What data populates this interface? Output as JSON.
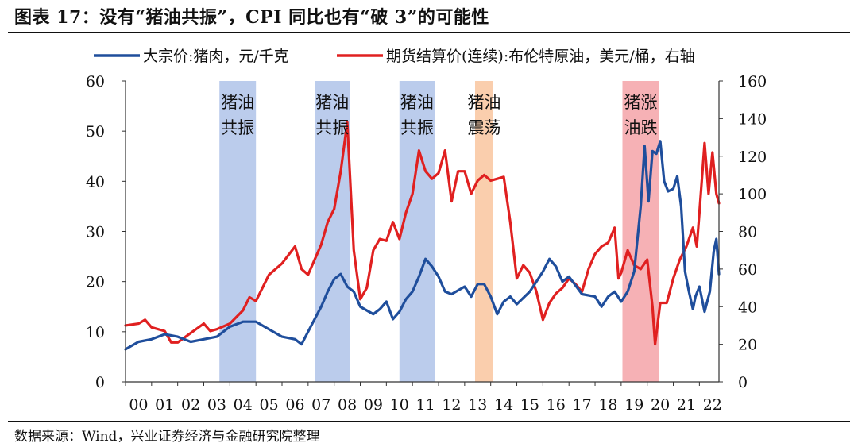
{
  "title": "图表 17：没有“猪油共振”，CPI 同比也有“破 3”的可能性",
  "source": "数据来源：Wind，兴业证券经济与金融研究院整理",
  "colors": {
    "pork": "#1f4e9c",
    "oil": "#e02020",
    "band_blue": "#b4c6ea",
    "band_orange": "#f9c9a4",
    "band_red": "#f5a3a8"
  },
  "chart_data": {
    "type": "line",
    "x_tick_labels": [
      "00",
      "01",
      "02",
      "03",
      "04",
      "05",
      "06",
      "07",
      "08",
      "09",
      "10",
      "11",
      "12",
      "13",
      "14",
      "15",
      "16",
      "17",
      "18",
      "19",
      "20",
      "21",
      "22"
    ],
    "xlim": [
      2000.0,
      2022.75
    ],
    "y_left": {
      "lim": [
        0,
        60
      ],
      "ticks": [
        0,
        10,
        20,
        30,
        40,
        50,
        60
      ]
    },
    "y_right": {
      "lim": [
        0,
        160
      ],
      "ticks": [
        0,
        20,
        40,
        60,
        80,
        100,
        120,
        140,
        160
      ]
    },
    "legend": {
      "position": "top",
      "entries": [
        "大宗价:猪肉，元/千克",
        "期货结算价(连续):布伦特原油，美元/桶，右轴"
      ]
    },
    "series": [
      {
        "name": "大宗价:猪肉，元/千克",
        "axis": "left",
        "points": [
          [
            2000.0,
            6.5
          ],
          [
            2000.5,
            8.0
          ],
          [
            2001.0,
            8.5
          ],
          [
            2001.5,
            9.5
          ],
          [
            2002.0,
            9.0
          ],
          [
            2002.5,
            8.0
          ],
          [
            2003.0,
            8.5
          ],
          [
            2003.5,
            9.0
          ],
          [
            2004.0,
            11.0
          ],
          [
            2004.5,
            12.0
          ],
          [
            2005.0,
            12.0
          ],
          [
            2005.5,
            10.5
          ],
          [
            2006.0,
            9.0
          ],
          [
            2006.5,
            8.5
          ],
          [
            2006.75,
            7.5
          ],
          [
            2007.0,
            10.0
          ],
          [
            2007.5,
            15.0
          ],
          [
            2007.75,
            18.0
          ],
          [
            2008.0,
            20.5
          ],
          [
            2008.25,
            21.5
          ],
          [
            2008.5,
            19.0
          ],
          [
            2008.75,
            18.0
          ],
          [
            2009.0,
            15.0
          ],
          [
            2009.5,
            13.5
          ],
          [
            2009.75,
            14.5
          ],
          [
            2010.0,
            16.0
          ],
          [
            2010.25,
            12.5
          ],
          [
            2010.5,
            14.0
          ],
          [
            2010.75,
            16.5
          ],
          [
            2011.0,
            18.0
          ],
          [
            2011.25,
            21.0
          ],
          [
            2011.5,
            24.5
          ],
          [
            2011.75,
            23.0
          ],
          [
            2012.0,
            21.0
          ],
          [
            2012.25,
            18.0
          ],
          [
            2012.5,
            17.5
          ],
          [
            2013.0,
            19.0
          ],
          [
            2013.25,
            17.0
          ],
          [
            2013.5,
            19.5
          ],
          [
            2013.75,
            19.5
          ],
          [
            2014.0,
            17.0
          ],
          [
            2014.25,
            13.5
          ],
          [
            2014.5,
            16.0
          ],
          [
            2014.75,
            17.0
          ],
          [
            2015.0,
            15.5
          ],
          [
            2015.5,
            18.0
          ],
          [
            2015.75,
            20.0
          ],
          [
            2016.0,
            22.0
          ],
          [
            2016.25,
            24.5
          ],
          [
            2016.5,
            23.0
          ],
          [
            2016.75,
            20.0
          ],
          [
            2017.0,
            21.0
          ],
          [
            2017.5,
            17.5
          ],
          [
            2018.0,
            17.0
          ],
          [
            2018.25,
            15.0
          ],
          [
            2018.5,
            17.0
          ],
          [
            2018.75,
            18.0
          ],
          [
            2019.0,
            16.0
          ],
          [
            2019.25,
            18.0
          ],
          [
            2019.5,
            22.0
          ],
          [
            2019.75,
            35.0
          ],
          [
            2019.9,
            47.0
          ],
          [
            2020.05,
            36.0
          ],
          [
            2020.2,
            46.0
          ],
          [
            2020.35,
            45.5
          ],
          [
            2020.5,
            48.0
          ],
          [
            2020.65,
            40.0
          ],
          [
            2020.8,
            38.0
          ],
          [
            2021.0,
            38.5
          ],
          [
            2021.15,
            41.0
          ],
          [
            2021.3,
            35.0
          ],
          [
            2021.45,
            22.0
          ],
          [
            2021.6,
            18.0
          ],
          [
            2021.75,
            14.5
          ],
          [
            2021.85,
            17.0
          ],
          [
            2022.0,
            19.0
          ],
          [
            2022.2,
            14.0
          ],
          [
            2022.4,
            18.0
          ],
          [
            2022.55,
            26.0
          ],
          [
            2022.65,
            28.5
          ],
          [
            2022.75,
            21.5
          ]
        ]
      },
      {
        "name": "期货结算价(连续):布伦特原油，美元/桶，右轴",
        "axis": "right",
        "points": [
          [
            2000.0,
            30.0
          ],
          [
            2000.5,
            31.0
          ],
          [
            2000.75,
            33.0
          ],
          [
            2001.0,
            29.0
          ],
          [
            2001.5,
            27.0
          ],
          [
            2001.75,
            21.0
          ],
          [
            2002.0,
            21.0
          ],
          [
            2002.5,
            26.0
          ],
          [
            2003.0,
            31.0
          ],
          [
            2003.25,
            27.0
          ],
          [
            2003.5,
            28.0
          ],
          [
            2004.0,
            31.0
          ],
          [
            2004.5,
            38.0
          ],
          [
            2004.75,
            45.0
          ],
          [
            2005.0,
            43.0
          ],
          [
            2005.5,
            57.0
          ],
          [
            2005.75,
            60.0
          ],
          [
            2006.0,
            63.0
          ],
          [
            2006.5,
            72.0
          ],
          [
            2006.75,
            60.0
          ],
          [
            2007.0,
            57.0
          ],
          [
            2007.5,
            73.0
          ],
          [
            2007.75,
            85.0
          ],
          [
            2008.0,
            92.0
          ],
          [
            2008.25,
            112.0
          ],
          [
            2008.5,
            138.0
          ],
          [
            2008.75,
            70.0
          ],
          [
            2009.0,
            44.0
          ],
          [
            2009.25,
            50.0
          ],
          [
            2009.5,
            70.0
          ],
          [
            2009.75,
            76.0
          ],
          [
            2010.0,
            75.0
          ],
          [
            2010.25,
            85.0
          ],
          [
            2010.5,
            76.0
          ],
          [
            2010.75,
            90.0
          ],
          [
            2011.0,
            100.0
          ],
          [
            2011.25,
            123.0
          ],
          [
            2011.5,
            112.0
          ],
          [
            2011.75,
            108.0
          ],
          [
            2012.0,
            111.0
          ],
          [
            2012.25,
            123.0
          ],
          [
            2012.5,
            96.0
          ],
          [
            2012.75,
            112.0
          ],
          [
            2013.0,
            112.0
          ],
          [
            2013.25,
            100.0
          ],
          [
            2013.5,
            107.0
          ],
          [
            2013.75,
            110.0
          ],
          [
            2014.0,
            107.0
          ],
          [
            2014.25,
            108.0
          ],
          [
            2014.5,
            109.0
          ],
          [
            2014.75,
            85.0
          ],
          [
            2015.0,
            55.0
          ],
          [
            2015.25,
            62.0
          ],
          [
            2015.5,
            58.0
          ],
          [
            2015.75,
            48.0
          ],
          [
            2016.0,
            33.0
          ],
          [
            2016.25,
            42.0
          ],
          [
            2016.5,
            47.0
          ],
          [
            2016.75,
            50.0
          ],
          [
            2017.0,
            55.0
          ],
          [
            2017.25,
            52.0
          ],
          [
            2017.5,
            48.0
          ],
          [
            2017.75,
            60.0
          ],
          [
            2018.0,
            68.0
          ],
          [
            2018.25,
            72.0
          ],
          [
            2018.5,
            74.0
          ],
          [
            2018.75,
            82.0
          ],
          [
            2018.9,
            55.0
          ],
          [
            2019.0,
            58.0
          ],
          [
            2019.25,
            70.0
          ],
          [
            2019.5,
            62.0
          ],
          [
            2019.75,
            60.0
          ],
          [
            2020.0,
            65.0
          ],
          [
            2020.2,
            40.0
          ],
          [
            2020.3,
            20.0
          ],
          [
            2020.5,
            42.0
          ],
          [
            2020.75,
            42.0
          ],
          [
            2021.0,
            55.0
          ],
          [
            2021.25,
            65.0
          ],
          [
            2021.5,
            72.0
          ],
          [
            2021.75,
            82.0
          ],
          [
            2021.9,
            72.0
          ],
          [
            2022.0,
            90.0
          ],
          [
            2022.2,
            127.0
          ],
          [
            2022.35,
            100.0
          ],
          [
            2022.5,
            122.0
          ],
          [
            2022.65,
            100.0
          ],
          [
            2022.75,
            95.0
          ]
        ]
      }
    ],
    "bands": [
      {
        "x0": 2003.6,
        "x1": 2005.0,
        "label": [
          "猪油",
          "共振"
        ],
        "color": "blue"
      },
      {
        "x0": 2007.25,
        "x1": 2008.6,
        "label": [
          "猪油",
          "共振"
        ],
        "color": "blue"
      },
      {
        "x0": 2010.5,
        "x1": 2011.85,
        "label": [
          "猪油",
          "共振"
        ],
        "color": "blue"
      },
      {
        "x0": 2013.4,
        "x1": 2014.1,
        "label": [
          "猪油",
          "震荡"
        ],
        "color": "orange"
      },
      {
        "x0": 2019.05,
        "x1": 2020.45,
        "label": [
          "猪涨",
          "油跌"
        ],
        "color": "red"
      }
    ]
  }
}
